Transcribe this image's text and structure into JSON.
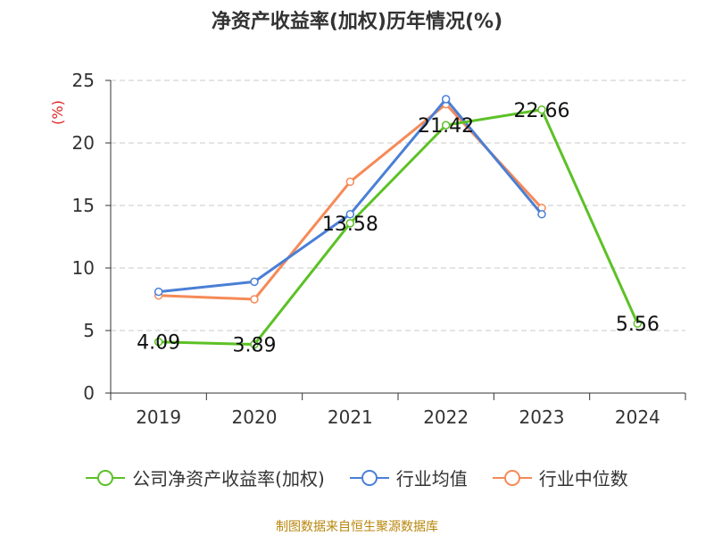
{
  "title": "净资产收益率(加权)历年情况(%)",
  "source": "制图数据来自恒生聚源数据库",
  "chart_data": {
    "type": "line",
    "title": "净资产收益率(加权)历年情况(%)",
    "ylabel": "(%)",
    "xlabel": "",
    "categories": [
      "2019",
      "2020",
      "2021",
      "2022",
      "2023",
      "2024"
    ],
    "ylim": [
      0,
      25
    ],
    "yticks": [
      0,
      5,
      10,
      15,
      20,
      25
    ],
    "grid": "horizontal dashed",
    "legend_position": "bottom",
    "series": [
      {
        "name": "公司净资产收益率(加权)",
        "color": "#5cc126",
        "values": [
          4.09,
          3.89,
          13.58,
          21.42,
          22.66,
          5.56
        ],
        "labels": [
          "4.09",
          "3.89",
          "13.58",
          "21.42",
          "22.66",
          "5.56"
        ]
      },
      {
        "name": "行业均值",
        "color": "#4a7fd6",
        "values": [
          8.1,
          8.9,
          14.3,
          23.5,
          14.3,
          null
        ]
      },
      {
        "name": "行业中位数",
        "color": "#f58a58",
        "values": [
          7.8,
          7.5,
          16.9,
          23.1,
          14.8,
          null
        ]
      }
    ]
  }
}
